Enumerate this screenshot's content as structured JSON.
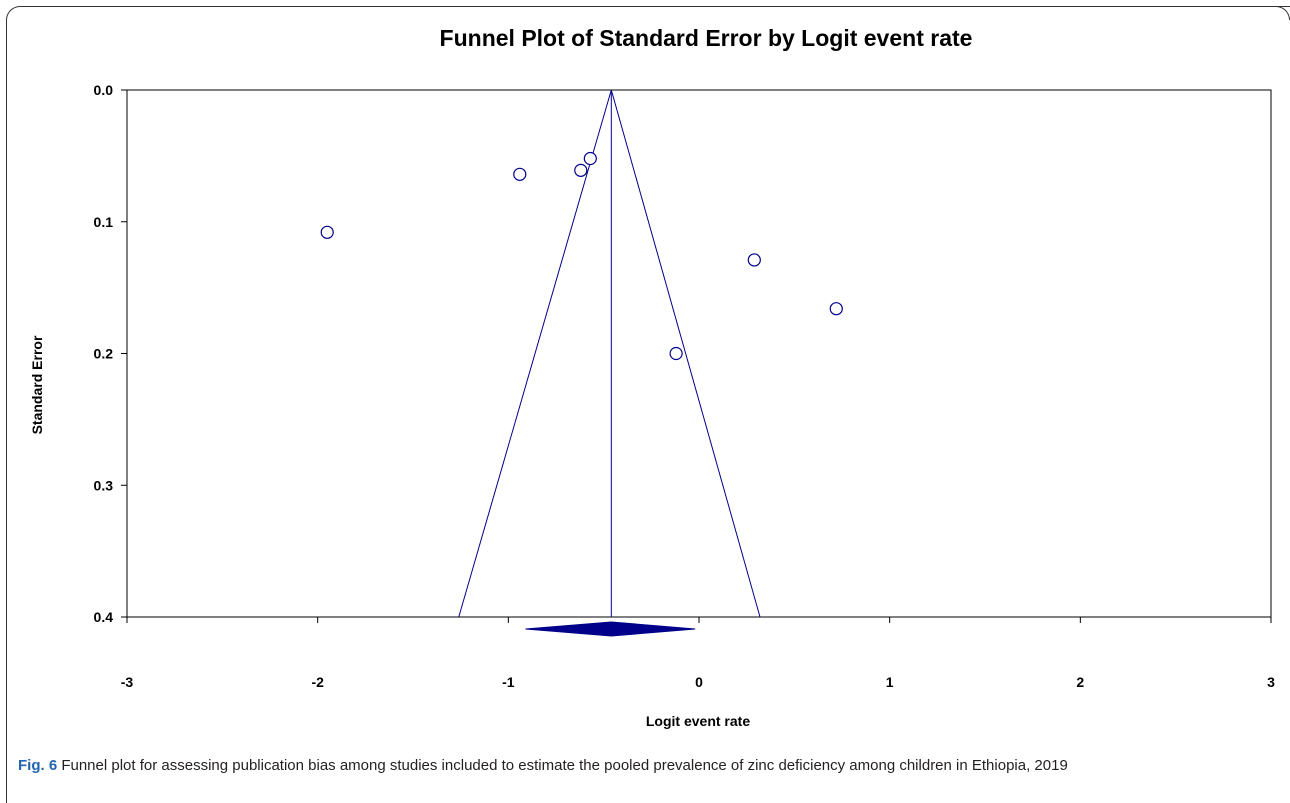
{
  "chart_data": {
    "type": "scatter",
    "title": "Funnel Plot of Standard Error by Logit event rate",
    "xlabel": "Logit event rate",
    "ylabel": "Standard Error",
    "xlim": [
      -3,
      3
    ],
    "ylim": [
      0.4,
      0.0
    ],
    "y_axis_inverted": true,
    "x_ticks": [
      "-3",
      "-2",
      "-1",
      "0",
      "1",
      "2",
      "3"
    ],
    "x_tick_values": [
      -3,
      -2,
      -1,
      0,
      1,
      2,
      3
    ],
    "y_ticks": [
      "0.0",
      "0.1",
      "0.2",
      "0.3",
      "0.4"
    ],
    "y_tick_values": [
      0.0,
      0.1,
      0.2,
      0.3,
      0.4
    ],
    "grid": false,
    "legend": "none",
    "points": [
      {
        "x": -1.95,
        "y": 0.108
      },
      {
        "x": -0.94,
        "y": 0.064
      },
      {
        "x": -0.62,
        "y": 0.061
      },
      {
        "x": -0.57,
        "y": 0.052
      },
      {
        "x": -0.12,
        "y": 0.2
      },
      {
        "x": 0.29,
        "y": 0.129
      },
      {
        "x": 0.72,
        "y": 0.166
      }
    ],
    "pooled_estimate": -0.46,
    "pooled_ci": [
      -0.91,
      -0.02
    ],
    "funnel_lines": [
      {
        "x_top": -0.46,
        "y_top": 0.0,
        "x_bottom": -1.26,
        "y_bottom": 0.4
      },
      {
        "x_top": -0.46,
        "y_top": 0.0,
        "x_bottom": 0.32,
        "y_bottom": 0.4
      }
    ],
    "colors": {
      "points": "#00008b",
      "lines": "#00008b",
      "diamond": "#00008b",
      "axes": "#000000"
    }
  },
  "caption": {
    "label": "Fig. 6",
    "text": " Funnel plot for assessing publication bias among studies included to estimate the pooled prevalence of zinc deficiency among children in Ethiopia, 2019"
  }
}
